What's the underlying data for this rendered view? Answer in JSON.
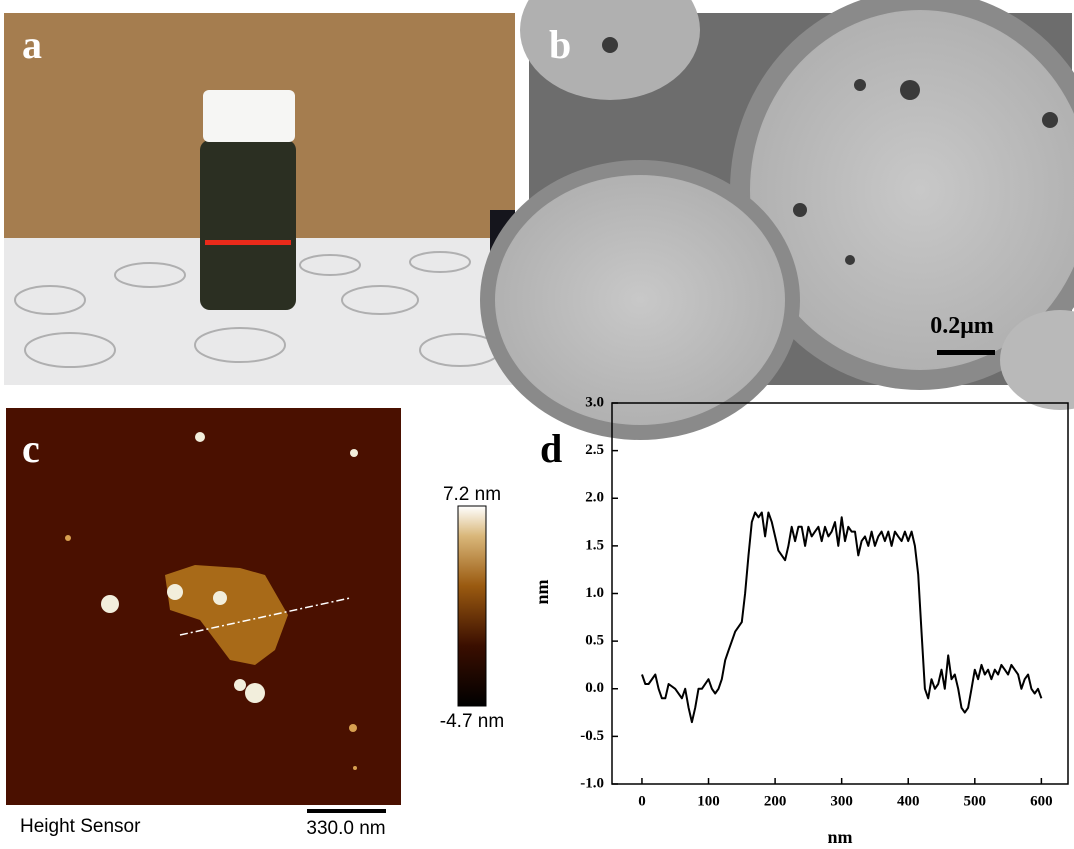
{
  "panels": [
    {
      "label": "a"
    },
    {
      "label": "b",
      "scale_bar": "0.2μm"
    },
    {
      "label": "c",
      "caption": "Height Sensor",
      "scale_bar": "330.0 nm",
      "colorbar": {
        "max": "7.2 nm",
        "min": "-4.7 nm"
      }
    }
  ],
  "chart_data": {
    "type": "line",
    "panel_label": "d",
    "xlabel": "nm",
    "ylabel": "nm",
    "color": "#000000",
    "x": [
      0,
      5,
      10,
      20,
      25,
      30,
      35,
      40,
      50,
      60,
      65,
      70,
      75,
      80,
      85,
      90,
      100,
      105,
      110,
      115,
      120,
      125,
      130,
      140,
      150,
      155,
      160,
      165,
      170,
      175,
      180,
      185,
      190,
      195,
      200,
      205,
      210,
      215,
      220,
      225,
      230,
      235,
      240,
      245,
      250,
      255,
      260,
      265,
      270,
      275,
      280,
      285,
      290,
      295,
      300,
      305,
      310,
      315,
      320,
      325,
      330,
      335,
      340,
      345,
      350,
      355,
      360,
      365,
      370,
      375,
      380,
      385,
      390,
      395,
      400,
      405,
      410,
      415,
      420,
      425,
      430,
      435,
      440,
      445,
      450,
      455,
      460,
      465,
      470,
      475,
      480,
      485,
      490,
      495,
      500,
      505,
      510,
      515,
      520,
      525,
      530,
      535,
      540,
      545,
      550,
      555,
      560,
      565,
      570,
      575,
      580,
      585,
      590,
      595,
      600
    ],
    "values": [
      0.15,
      0.05,
      0.05,
      0.15,
      0.0,
      -0.1,
      -0.1,
      0.05,
      0.0,
      -0.1,
      0.0,
      -0.2,
      -0.35,
      -0.2,
      0.0,
      0.0,
      0.1,
      0.0,
      -0.05,
      0.0,
      0.1,
      0.3,
      0.4,
      0.6,
      0.7,
      1.0,
      1.4,
      1.75,
      1.85,
      1.8,
      1.85,
      1.6,
      1.85,
      1.75,
      1.6,
      1.45,
      1.4,
      1.35,
      1.5,
      1.7,
      1.55,
      1.7,
      1.7,
      1.5,
      1.7,
      1.6,
      1.65,
      1.7,
      1.55,
      1.7,
      1.6,
      1.65,
      1.75,
      1.5,
      1.8,
      1.55,
      1.7,
      1.65,
      1.65,
      1.4,
      1.55,
      1.6,
      1.5,
      1.65,
      1.5,
      1.6,
      1.65,
      1.55,
      1.65,
      1.5,
      1.65,
      1.6,
      1.55,
      1.65,
      1.55,
      1.65,
      1.5,
      1.2,
      0.6,
      0.0,
      -0.1,
      0.1,
      0.0,
      0.05,
      0.2,
      0.0,
      0.35,
      0.1,
      0.15,
      0.0,
      -0.2,
      -0.25,
      -0.2,
      0.0,
      0.2,
      0.1,
      0.25,
      0.15,
      0.2,
      0.1,
      0.2,
      0.15,
      0.25,
      0.2,
      0.15,
      0.25,
      0.2,
      0.15,
      0.0,
      0.1,
      0.15,
      0.0,
      -0.05,
      0.0,
      -0.1
    ],
    "xlim": [
      -45,
      640
    ],
    "xticks": [
      0,
      100,
      200,
      300,
      400,
      500,
      600
    ],
    "ylim": [
      -1,
      3
    ],
    "yticks": [
      {
        "value": -1,
        "label": "-1.0"
      },
      {
        "value": -0.5,
        "label": "-0.5"
      },
      {
        "value": 0,
        "label": "0.0"
      },
      {
        "value": 0.5,
        "label": "0.5"
      },
      {
        "value": 1,
        "label": "1.0"
      },
      {
        "value": 1.5,
        "label": "1.5"
      },
      {
        "value": 2,
        "label": "2.0"
      },
      {
        "value": 2.5,
        "label": "2.5"
      },
      {
        "value": 3,
        "label": "3.0"
      }
    ]
  }
}
